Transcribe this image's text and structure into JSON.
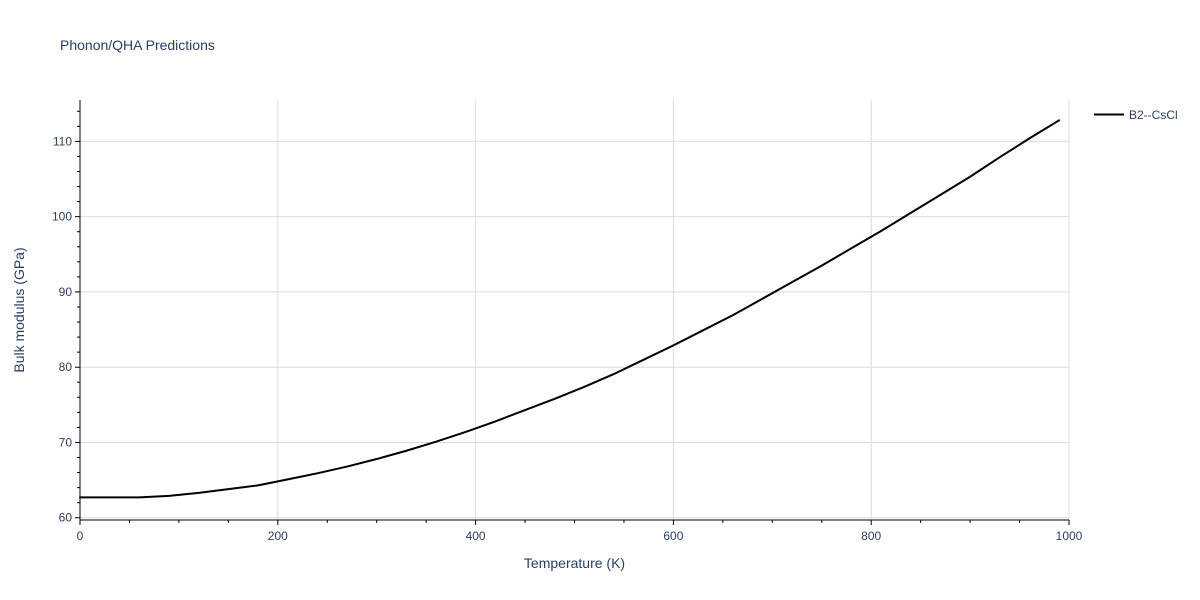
{
  "chart_data": {
    "type": "line",
    "title": "Phonon/QHA Predictions",
    "xlabel": "Temperature (K)",
    "ylabel": "Bulk modulus (GPa)",
    "xlim": [
      0,
      1000
    ],
    "ylim": [
      59.7,
      115.5
    ],
    "x_ticks": [
      0,
      200,
      400,
      600,
      800,
      1000
    ],
    "x_tick_labels": [
      "0",
      "200",
      "400",
      "600",
      "800",
      "1000"
    ],
    "x_minor_ticks": [
      50,
      100,
      150,
      250,
      300,
      350,
      450,
      500,
      550,
      650,
      700,
      750,
      850,
      900,
      950
    ],
    "y_ticks": [
      60,
      70,
      80,
      90,
      100,
      110
    ],
    "y_tick_labels": [
      "60",
      "70",
      "80",
      "90",
      "100",
      "110"
    ],
    "grid": true,
    "legend_position": "top-right",
    "series": [
      {
        "name": "B2--CsCl",
        "color": "#000000",
        "x": [
          0,
          30,
          60,
          90,
          120,
          150,
          180,
          210,
          240,
          270,
          300,
          330,
          360,
          390,
          420,
          450,
          480,
          510,
          540,
          570,
          600,
          630,
          660,
          690,
          720,
          750,
          780,
          810,
          840,
          870,
          900,
          930,
          960,
          990
        ],
        "y": [
          62.7,
          62.7,
          62.7,
          62.9,
          63.3,
          63.8,
          64.3,
          65.1,
          65.9,
          66.8,
          67.8,
          68.9,
          70.1,
          71.4,
          72.8,
          74.3,
          75.8,
          77.4,
          79.1,
          81.0,
          82.9,
          84.9,
          86.9,
          89.1,
          91.3,
          93.5,
          95.8,
          98.1,
          100.5,
          102.9,
          105.3,
          107.9,
          110.4,
          112.8
        ]
      }
    ]
  }
}
